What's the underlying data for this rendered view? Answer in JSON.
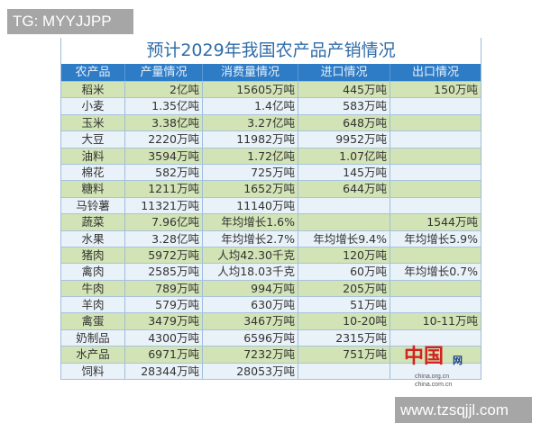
{
  "watermarks": {
    "top_left": "TG: MYYJJPP",
    "bottom_right": "www.tzsqjjl.com"
  },
  "table": {
    "title": "预计2029年我国农产品产销情况",
    "headers": [
      "农产品",
      "产量情况",
      "消费量情况",
      "进口情况",
      "出口情况"
    ],
    "rows": [
      [
        "稻米",
        "2亿吨",
        "15605万吨",
        "445万吨",
        "150万吨"
      ],
      [
        "小麦",
        "1.35亿吨",
        "1.4亿吨",
        "583万吨",
        ""
      ],
      [
        "玉米",
        "3.38亿吨",
        "3.27亿吨",
        "648万吨",
        ""
      ],
      [
        "大豆",
        "2220万吨",
        "11982万吨",
        "9952万吨",
        ""
      ],
      [
        "油料",
        "3594万吨",
        "1.72亿吨",
        "1.07亿吨",
        ""
      ],
      [
        "棉花",
        "582万吨",
        "725万吨",
        "145万吨",
        ""
      ],
      [
        "糖料",
        "1211万吨",
        "1652万吨",
        "644万吨",
        ""
      ],
      [
        "马铃薯",
        "11321万吨",
        "11140万吨",
        "",
        ""
      ],
      [
        "蔬菜",
        "7.96亿吨",
        "年均增长1.6%",
        "",
        "1544万吨"
      ],
      [
        "水果",
        "3.28亿吨",
        "年均增长2.7%",
        "年均增长9.4%",
        "年均增长5.9%"
      ],
      [
        "猪肉",
        "5972万吨",
        "人均42.30千克",
        "120万吨",
        ""
      ],
      [
        "禽肉",
        "2585万吨",
        "人均18.03千克",
        "60万吨",
        "年均增长0.7%"
      ],
      [
        "牛肉",
        "789万吨",
        "994万吨",
        "205万吨",
        ""
      ],
      [
        "羊肉",
        "579万吨",
        "630万吨",
        "51万吨",
        ""
      ],
      [
        "禽蛋",
        "3479万吨",
        "3467万吨",
        "10-20吨",
        "10-11万吨"
      ],
      [
        "奶制品",
        "4300万吨",
        "6596万吨",
        "2315万吨",
        ""
      ],
      [
        "水产品",
        "6971万吨",
        "7232万吨",
        "751万吨",
        ""
      ],
      [
        "饲料",
        "28344万吨",
        "28053万吨",
        "",
        ""
      ]
    ]
  },
  "logo": {
    "mark": "中国",
    "suffix": "网",
    "urls": [
      "china.org.cn",
      "china.com.cn"
    ]
  }
}
